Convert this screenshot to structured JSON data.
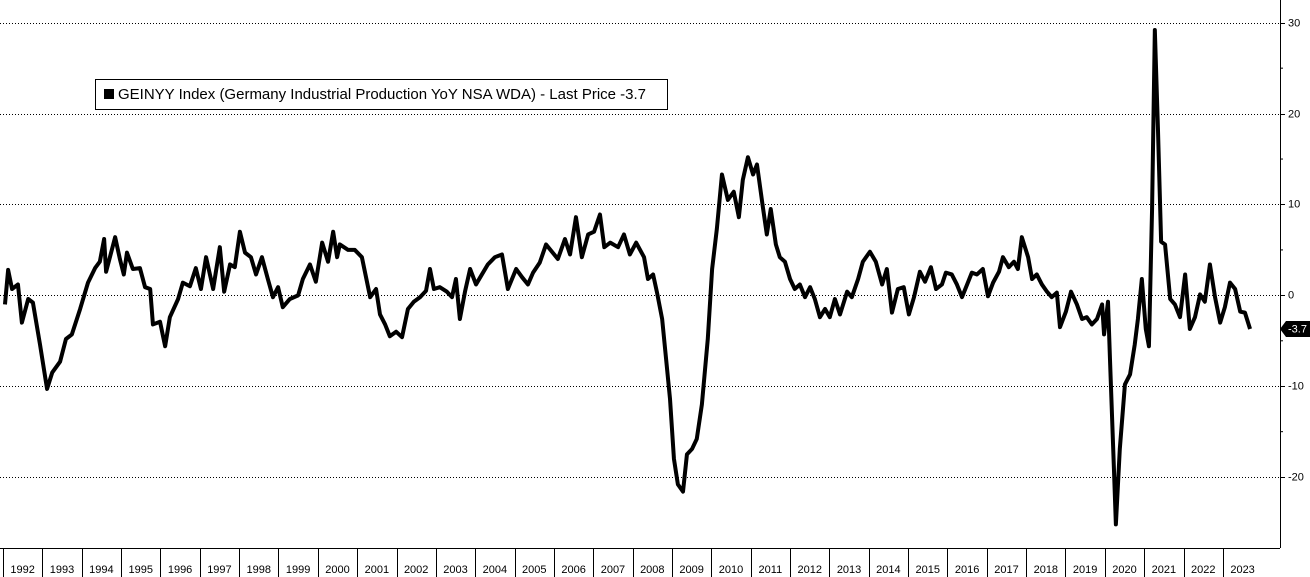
{
  "chart_data": {
    "type": "line",
    "x": [
      1992.05,
      1992.13,
      1992.23,
      1992.38,
      1992.48,
      1992.64,
      1992.76,
      1992.94,
      1993.12,
      1993.25,
      1993.45,
      1993.6,
      1993.75,
      1993.96,
      1994.16,
      1994.34,
      1994.46,
      1994.57,
      1994.62,
      1994.85,
      1994.97,
      1995.07,
      1995.15,
      1995.3,
      1995.48,
      1995.61,
      1995.74,
      1995.81,
      1995.99,
      1996.12,
      1996.24,
      1996.45,
      1996.57,
      1996.75,
      1996.9,
      1997.03,
      1997.16,
      1997.34,
      1997.51,
      1997.62,
      1997.77,
      1997.89,
      1998.02,
      1998.15,
      1998.3,
      1998.43,
      1998.58,
      1998.73,
      1998.86,
      1998.99,
      1999.11,
      1999.29,
      1999.5,
      1999.62,
      1999.8,
      1999.95,
      2000.11,
      2000.26,
      2000.39,
      2000.49,
      2000.56,
      2000.77,
      2000.94,
      2001.12,
      2001.33,
      2001.48,
      2001.58,
      2001.71,
      2001.83,
      2001.99,
      2002.14,
      2002.29,
      2002.44,
      2002.6,
      2002.75,
      2002.85,
      2002.95,
      2003.1,
      2003.28,
      2003.41,
      2003.51,
      2003.61,
      2003.74,
      2003.87,
      2004.02,
      2004.17,
      2004.32,
      2004.5,
      2004.68,
      2004.83,
      2005.04,
      2005.19,
      2005.34,
      2005.47,
      2005.64,
      2005.8,
      2005.95,
      2006.1,
      2006.28,
      2006.41,
      2006.56,
      2006.71,
      2006.87,
      2007.02,
      2007.17,
      2007.28,
      2007.43,
      2007.63,
      2007.78,
      2007.93,
      2008.09,
      2008.29,
      2008.39,
      2008.52,
      2008.62,
      2008.75,
      2008.85,
      2008.95,
      2009.05,
      2009.15,
      2009.28,
      2009.38,
      2009.51,
      2009.63,
      2009.76,
      2009.91,
      2010.02,
      2010.14,
      2010.27,
      2010.42,
      2010.57,
      2010.7,
      2010.8,
      2010.93,
      2011.06,
      2011.16,
      2011.31,
      2011.41,
      2011.51,
      2011.64,
      2011.74,
      2011.87,
      2012,
      2012.12,
      2012.25,
      2012.38,
      2012.51,
      2012.63,
      2012.76,
      2012.89,
      2013.01,
      2013.14,
      2013.27,
      2013.45,
      2013.57,
      2013.73,
      2013.85,
      2014.03,
      2014.18,
      2014.34,
      2014.46,
      2014.59,
      2014.74,
      2014.89,
      2015.02,
      2015.15,
      2015.3,
      2015.43,
      2015.58,
      2015.71,
      2015.86,
      2015.96,
      2016.11,
      2016.24,
      2016.37,
      2016.5,
      2016.62,
      2016.75,
      2016.9,
      2017.03,
      2017.16,
      2017.31,
      2017.41,
      2017.56,
      2017.69,
      2017.79,
      2017.89,
      2018.05,
      2018.15,
      2018.27,
      2018.4,
      2018.53,
      2018.65,
      2018.78,
      2018.86,
      2019.01,
      2019.14,
      2019.29,
      2019.42,
      2019.54,
      2019.67,
      2019.8,
      2019.93,
      2019.98,
      2020.08,
      2020.13,
      2020.23,
      2020.28,
      2020.38,
      2020.51,
      2020.64,
      2020.76,
      2020.84,
      2020.94,
      2021.04,
      2021.12,
      2021.2,
      2021.27,
      2021.35,
      2021.43,
      2021.53,
      2021.66,
      2021.78,
      2021.91,
      2022.04,
      2022.16,
      2022.29,
      2022.42,
      2022.54,
      2022.67,
      2022.8,
      2022.93,
      2023.05,
      2023.18,
      2023.31,
      2023.44,
      2023.56,
      2023.69
    ],
    "series": [
      {
        "name": "GEINYY Index (Germany Industrial Production YoY NSA WDA) - Last Price -3.7",
        "color": "#000000",
        "values": [
          -1,
          2.8,
          0.7,
          1.2,
          -3,
          -0.4,
          -0.8,
          -5.4,
          -10.3,
          -8.5,
          -7.3,
          -4.8,
          -4.3,
          -1.5,
          1.4,
          3,
          3.7,
          6.2,
          2.6,
          6.4,
          4,
          2.3,
          4.7,
          2.9,
          3,
          0.9,
          0.7,
          -3.2,
          -2.9,
          -5.6,
          -2.4,
          -0.4,
          1.4,
          1,
          3,
          0.7,
          4.2,
          0.7,
          5.3,
          0.4,
          3.4,
          3.1,
          7,
          4.7,
          4.2,
          2.3,
          4.2,
          1.8,
          -0.2,
          0.9,
          -1.3,
          -0.4,
          0,
          1.8,
          3.4,
          1.5,
          5.8,
          3.7,
          7,
          4.2,
          5.6,
          5,
          5,
          4.2,
          -0.2,
          0.7,
          -2.1,
          -3.2,
          -4.5,
          -4,
          -4.6,
          -1.5,
          -0.7,
          -0.2,
          0.5,
          2.9,
          0.7,
          0.9,
          0.4,
          -0.2,
          1.8,
          -2.6,
          0.4,
          2.9,
          1.2,
          2.3,
          3.4,
          4.2,
          4.5,
          0.7,
          2.9,
          2,
          1.2,
          2.5,
          3.6,
          5.6,
          4.8,
          4,
          6.2,
          4.5,
          8.6,
          4.2,
          6.7,
          7,
          8.9,
          5.3,
          5.8,
          5.3,
          6.7,
          4.5,
          5.8,
          4.2,
          1.8,
          2.3,
          0.3,
          -2.6,
          -7,
          -11.4,
          -18,
          -20.8,
          -21.6,
          -17.5,
          -16.9,
          -15.8,
          -12,
          -4.8,
          2.9,
          7.3,
          13.3,
          10.5,
          11.4,
          8.6,
          12.7,
          15.2,
          13.3,
          14.4,
          9.7,
          6.7,
          9.5,
          5.6,
          4.2,
          3.7,
          1.8,
          0.7,
          1.2,
          -0.2,
          0.9,
          -0.4,
          -2.4,
          -1.5,
          -2.4,
          -0.4,
          -2.1,
          0.4,
          -0.2,
          1.8,
          3.7,
          4.8,
          3.7,
          1.2,
          2.9,
          -1.9,
          0.7,
          0.9,
          -2.1,
          -0.2,
          2.6,
          1.5,
          3.1,
          0.7,
          1.2,
          2.5,
          2.3,
          1.2,
          -0.2,
          1.2,
          2.5,
          2.3,
          2.9,
          -0.1,
          1.4,
          2.6,
          4.2,
          3.1,
          3.7,
          2.9,
          6.4,
          4.2,
          1.8,
          2.3,
          1.2,
          0.4,
          -0.2,
          0.3,
          -3.5,
          -1.8,
          0.4,
          -1,
          -2.6,
          -2.4,
          -3.2,
          -2.6,
          -1,
          -4.3,
          -0.7,
          -7,
          -19,
          -25.2,
          -16.9,
          -9.8,
          -8.7,
          -5.4,
          -2.6,
          1.8,
          -3.7,
          -5.6,
          9.5,
          29.2,
          18.2,
          5.9,
          5.6,
          -0.4,
          -1,
          -2.4,
          2.3,
          -3.7,
          -2.4,
          0.1,
          -0.7,
          3.4,
          -0.2,
          -3,
          -1.3,
          1.4,
          0.7,
          -1.8,
          -1.9,
          -3.7
        ]
      }
    ],
    "xlim": [
      1992,
      2024.4
    ],
    "xticks": [
      1992,
      1993,
      1994,
      1995,
      1996,
      1997,
      1998,
      1999,
      2000,
      2001,
      2002,
      2003,
      2004,
      2005,
      2006,
      2007,
      2008,
      2009,
      2010,
      2011,
      2012,
      2013,
      2014,
      2015,
      2016,
      2017,
      2018,
      2019,
      2020,
      2021,
      2022,
      2023
    ],
    "ylim": [
      -27.8,
      32.5
    ],
    "yticks": [
      30,
      20,
      10,
      0,
      -10,
      -20
    ],
    "grid": true
  }
}
